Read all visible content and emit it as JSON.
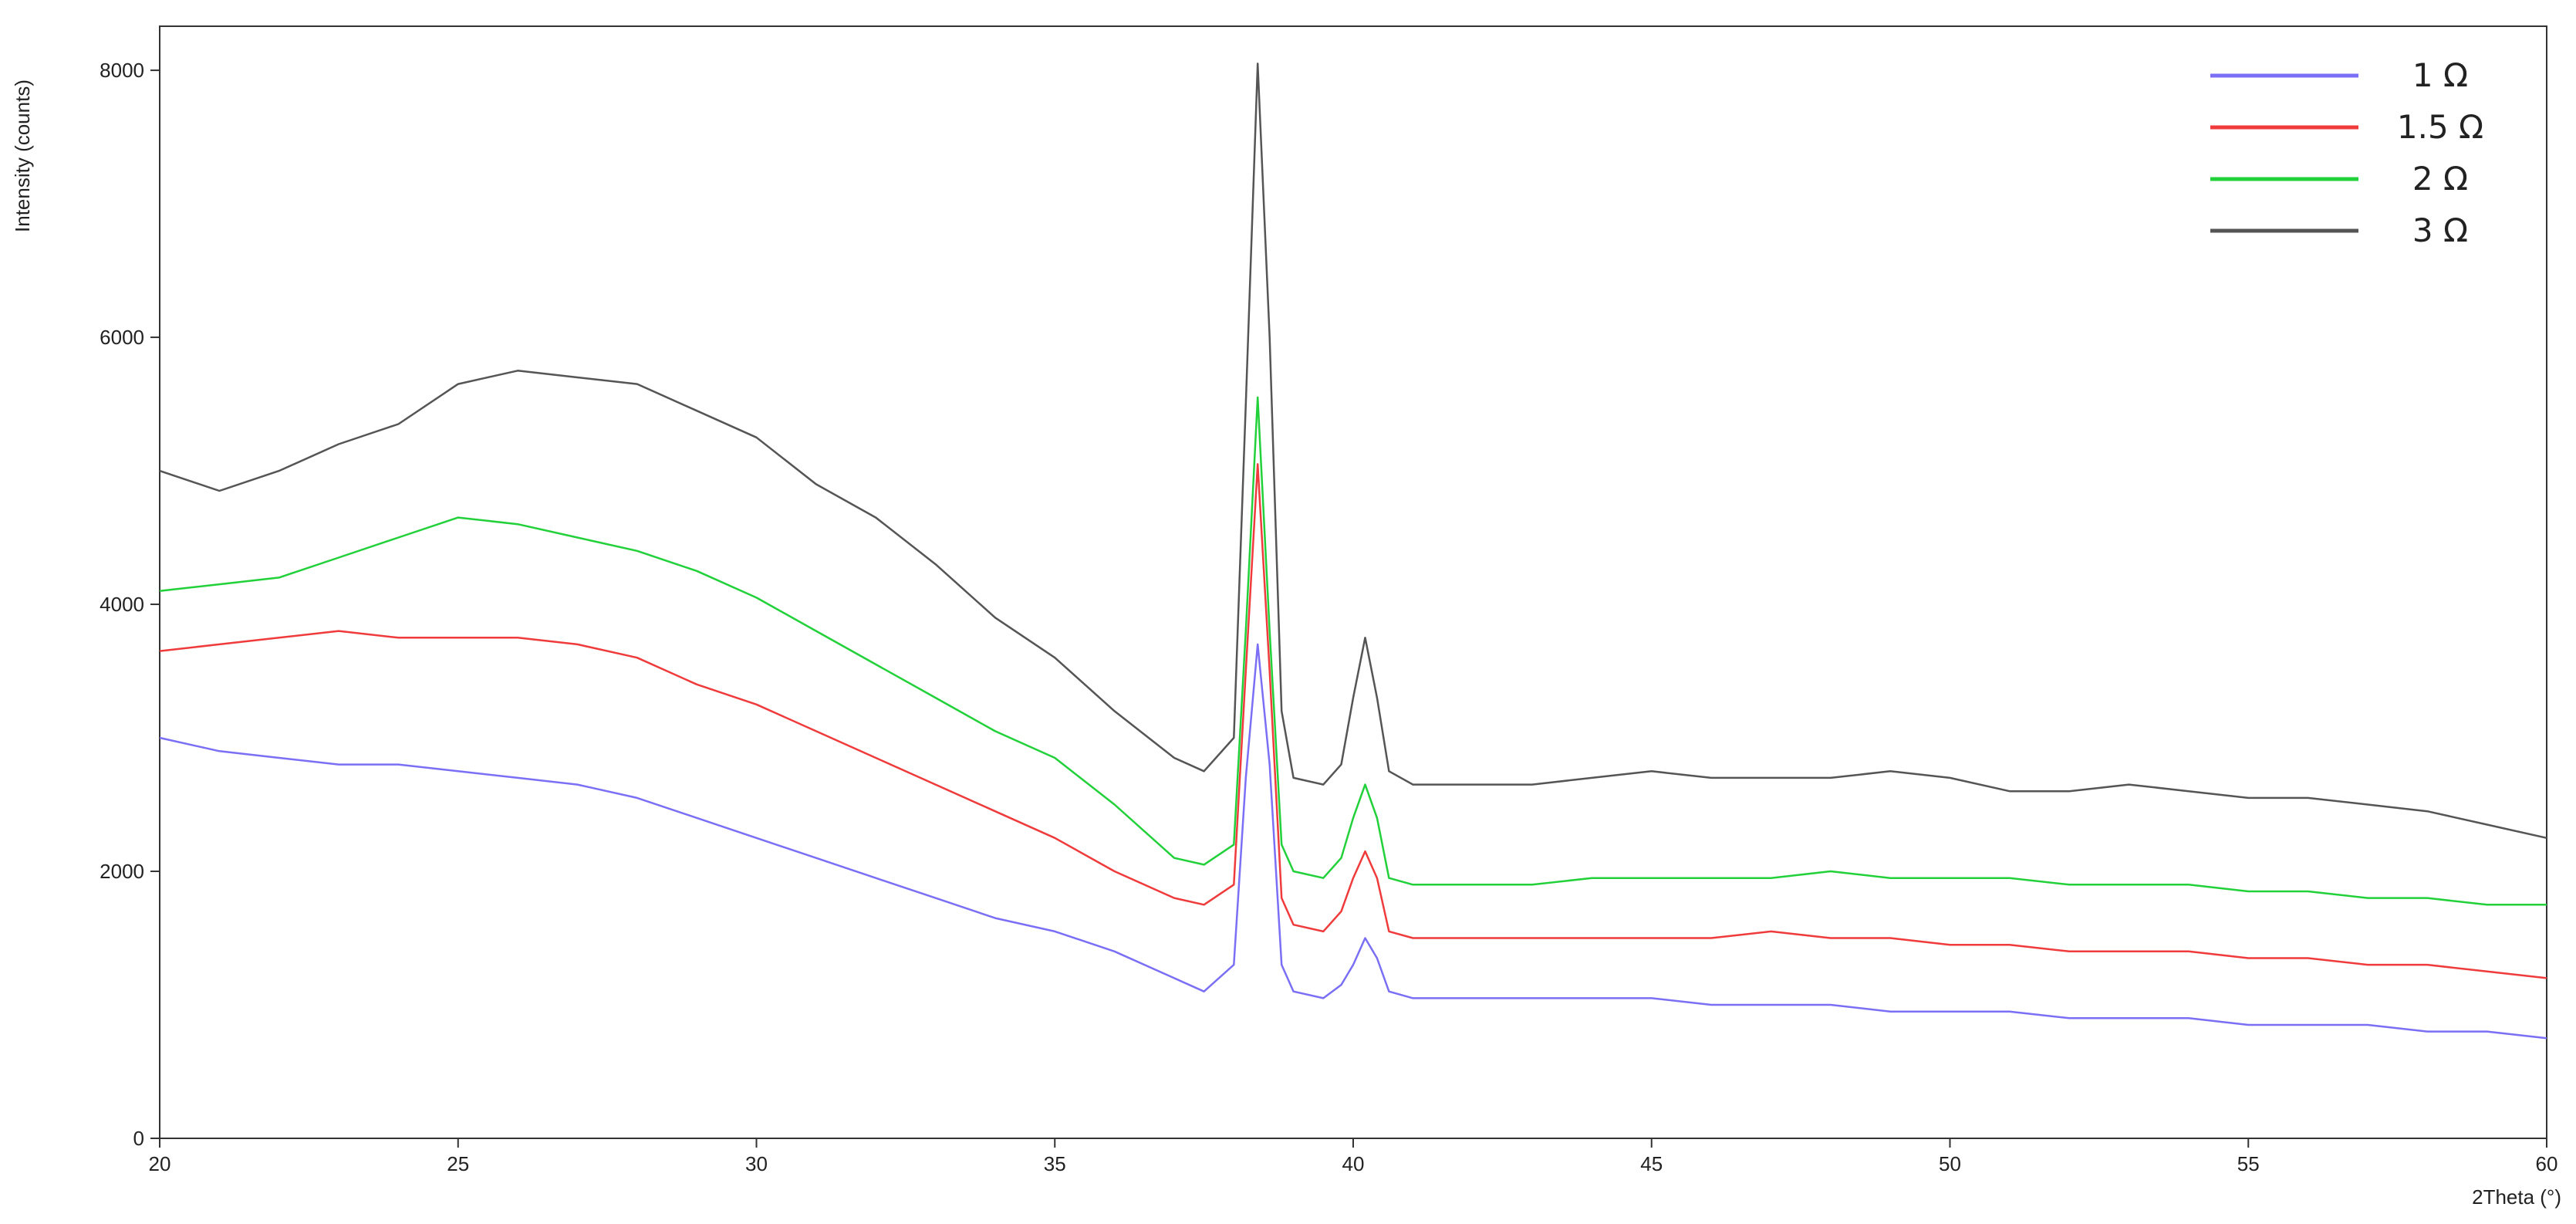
{
  "chart_data": {
    "type": "line",
    "x_label": "2Theta (°)",
    "y_label": "Intensity (counts)",
    "xlim": [
      20,
      60
    ],
    "ylim": [
      0,
      8330
    ],
    "xticks": [
      20,
      25,
      30,
      35,
      40,
      45,
      50,
      55,
      60
    ],
    "yticks": [
      0,
      2000,
      4000,
      6000,
      8000
    ],
    "legend": "top-right",
    "x": [
      20,
      21,
      22,
      23,
      24,
      25,
      26,
      27,
      28,
      29,
      30,
      31,
      32,
      33,
      34,
      35,
      36,
      37,
      37.5,
      38,
      38.2,
      38.4,
      38.6,
      38.8,
      39,
      39.5,
      39.8,
      40,
      40.2,
      40.4,
      40.6,
      41,
      42,
      43,
      44,
      45,
      46,
      47,
      48,
      49,
      50,
      51,
      52,
      53,
      54,
      55,
      56,
      57,
      58,
      59,
      60
    ],
    "series": [
      {
        "name": "1 Ω",
        "color": "#7a6ff5",
        "values": [
          3000,
          2900,
          2850,
          2800,
          2800,
          2750,
          2700,
          2650,
          2550,
          2400,
          2250,
          2100,
          1950,
          1800,
          1650,
          1550,
          1400,
          1200,
          1100,
          1300,
          2700,
          3700,
          2800,
          1300,
          1100,
          1050,
          1150,
          1300,
          1500,
          1350,
          1100,
          1050,
          1050,
          1050,
          1050,
          1050,
          1000,
          1000,
          1000,
          950,
          950,
          950,
          900,
          900,
          900,
          850,
          850,
          850,
          800,
          800,
          750
        ]
      },
      {
        "name": "1.5 Ω",
        "color": "#ef3b3b",
        "values": [
          3650,
          3700,
          3750,
          3800,
          3750,
          3750,
          3750,
          3700,
          3600,
          3400,
          3250,
          3050,
          2850,
          2650,
          2450,
          2250,
          2000,
          1800,
          1750,
          1900,
          3500,
          5050,
          3500,
          1800,
          1600,
          1550,
          1700,
          1950,
          2150,
          1950,
          1550,
          1500,
          1500,
          1500,
          1500,
          1500,
          1500,
          1550,
          1500,
          1500,
          1450,
          1450,
          1400,
          1400,
          1400,
          1350,
          1350,
          1300,
          1300,
          1250,
          1200
        ]
      },
      {
        "name": "2 Ω",
        "color": "#22d13a",
        "values": [
          4100,
          4150,
          4200,
          4350,
          4500,
          4650,
          4600,
          4500,
          4400,
          4250,
          4050,
          3800,
          3550,
          3300,
          3050,
          2850,
          2500,
          2100,
          2050,
          2200,
          3800,
          5550,
          3800,
          2200,
          2000,
          1950,
          2100,
          2400,
          2650,
          2400,
          1950,
          1900,
          1900,
          1900,
          1950,
          1950,
          1950,
          1950,
          2000,
          1950,
          1950,
          1950,
          1900,
          1900,
          1900,
          1850,
          1850,
          1800,
          1800,
          1750,
          1750
        ]
      },
      {
        "name": "3 Ω",
        "color": "#555555",
        "values": [
          5000,
          4850,
          5000,
          5200,
          5350,
          5650,
          5750,
          5700,
          5650,
          5450,
          5250,
          4900,
          4650,
          4300,
          3900,
          3600,
          3200,
          2850,
          2750,
          3000,
          5500,
          8050,
          6000,
          3200,
          2700,
          2650,
          2800,
          3300,
          3750,
          3300,
          2750,
          2650,
          2650,
          2650,
          2700,
          2750,
          2700,
          2700,
          2700,
          2750,
          2700,
          2600,
          2600,
          2650,
          2600,
          2550,
          2550,
          2500,
          2450,
          2350,
          2250
        ]
      }
    ]
  }
}
